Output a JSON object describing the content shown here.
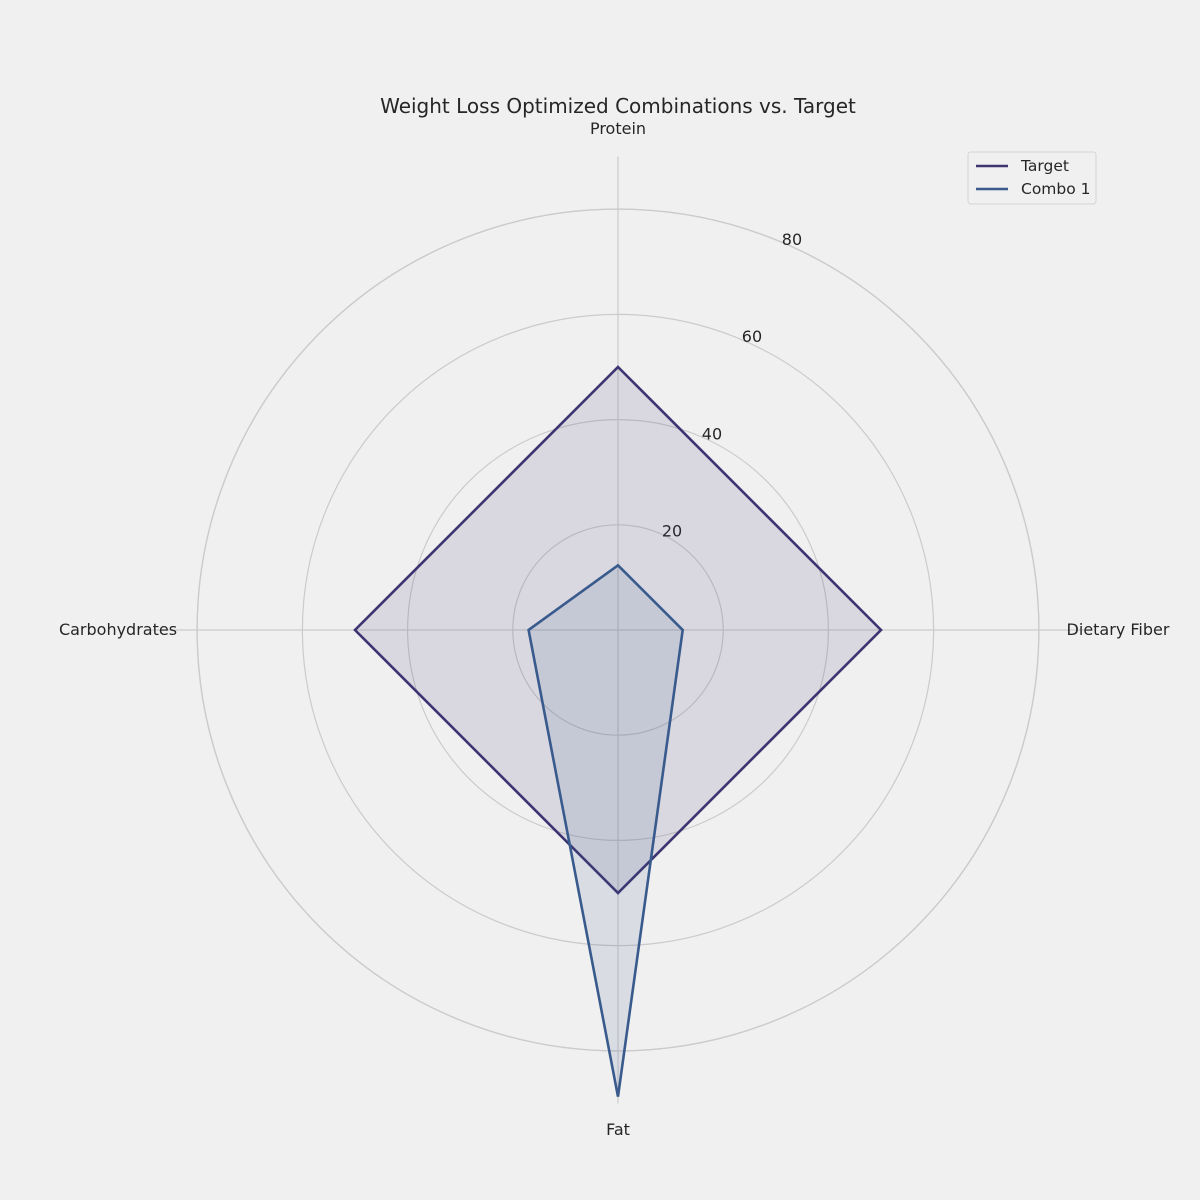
{
  "chart_data": {
    "type": "radar",
    "title": "Weight Loss Optimized Combinations vs. Target",
    "axes": [
      "Protein",
      "Dietary Fiber",
      "Fat",
      "Carbohydrates"
    ],
    "rlim": [
      0,
      80
    ],
    "ticks": [
      20,
      40,
      60,
      80
    ],
    "outer_circle": 80,
    "grid": true,
    "legend_position": "top-right",
    "series": [
      {
        "name": "Target",
        "values": [
          50,
          50,
          50,
          50
        ],
        "color": "#3d3572",
        "fill": "#3d3572"
      },
      {
        "name": "Combo 1",
        "values": [
          12.3,
          12.3,
          88.7,
          17
        ],
        "color": "#395a8c",
        "fill": "#395a8c"
      }
    ],
    "background": "#f0f0f0",
    "grid_color": "#cbcbcb"
  }
}
